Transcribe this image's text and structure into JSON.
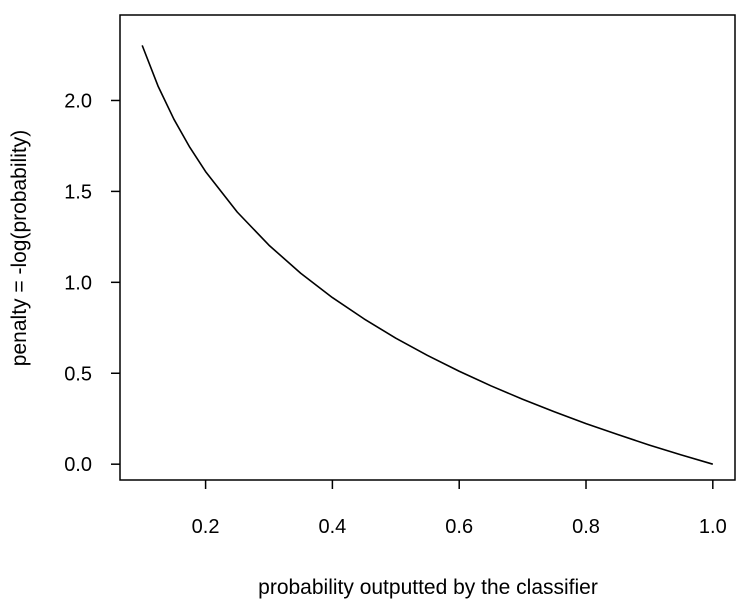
{
  "chart_data": {
    "type": "line",
    "title": "",
    "xlabel": "probability outputted by the classifier",
    "ylabel": "penalty = -log(probability)",
    "xlim": [
      0.065,
      1.035
    ],
    "ylim": [
      -0.087,
      2.47
    ],
    "x_ticks": [
      0.2,
      0.4,
      0.6,
      0.8,
      1.0
    ],
    "x_tick_labels": [
      "0.2",
      "0.4",
      "0.6",
      "0.8",
      "1.0"
    ],
    "y_ticks": [
      0.0,
      0.5,
      1.0,
      1.5,
      2.0
    ],
    "y_tick_labels": [
      "0.0",
      "0.5",
      "1.0",
      "1.5",
      "2.0"
    ],
    "grid": false,
    "legend": "none",
    "line_color": "#000000",
    "series": [
      {
        "x": [
          0.1,
          0.125,
          0.15,
          0.175,
          0.2,
          0.25,
          0.3,
          0.35,
          0.4,
          0.45,
          0.5,
          0.55,
          0.6,
          0.65,
          0.7,
          0.75,
          0.8,
          0.85,
          0.9,
          0.95,
          1.0
        ],
        "y": [
          2.303,
          2.079,
          1.897,
          1.743,
          1.609,
          1.386,
          1.204,
          1.05,
          0.916,
          0.799,
          0.693,
          0.598,
          0.511,
          0.431,
          0.357,
          0.288,
          0.223,
          0.163,
          0.105,
          0.051,
          0.0
        ]
      }
    ]
  }
}
